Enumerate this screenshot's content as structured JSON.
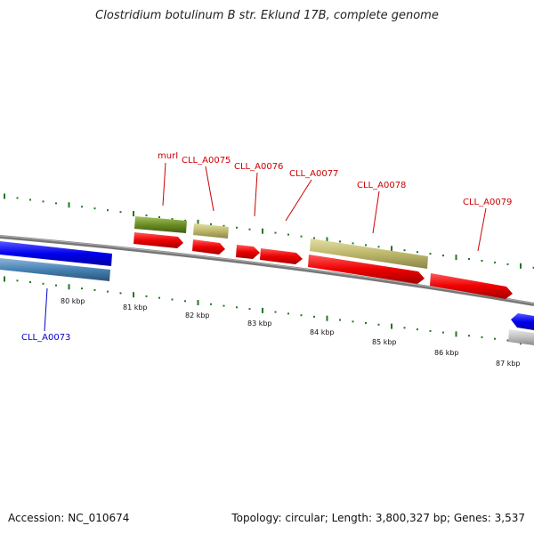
{
  "title": "Clostridium botulinum B str. Eklund 17B, complete genome",
  "footer": {
    "accession": "Accession: NC_010674",
    "stats": "Topology: circular; Length: 3,800,327 bp; Genes: 3,537"
  },
  "scale_labels": [
    "80 kbp",
    "81 kbp",
    "82 kbp",
    "83 kbp",
    "84 kbp",
    "85 kbp",
    "86 kbp",
    "87 kbp"
  ],
  "gene_labels": [
    {
      "id": "murI",
      "text": "murI",
      "color": "#cc0000"
    },
    {
      "id": "CLL_A0075",
      "text": "CLL_A0075",
      "color": "#cc0000"
    },
    {
      "id": "CLL_A0076",
      "text": "CLL_A0076",
      "color": "#cc0000"
    },
    {
      "id": "CLL_A0077",
      "text": "CLL_A0077",
      "color": "#cc0000"
    },
    {
      "id": "CLL_A0078",
      "text": "CLL_A0078",
      "color": "#cc0000"
    },
    {
      "id": "CLL_A0079",
      "text": "CLL_A0079",
      "color": "#cc0000"
    },
    {
      "id": "CLL_A0073",
      "text": "CLL_A0073",
      "color": "#0000cc"
    }
  ],
  "colors": {
    "forward_cds": "#ee0000",
    "forward_gene_olive": "#6b8e23",
    "forward_gene_khaki": "#bdb76b",
    "reverse_cds": "#0000ee",
    "reverse_gene_steel": "#4682b4",
    "backbone": "#888888",
    "tick": "#227722"
  }
}
